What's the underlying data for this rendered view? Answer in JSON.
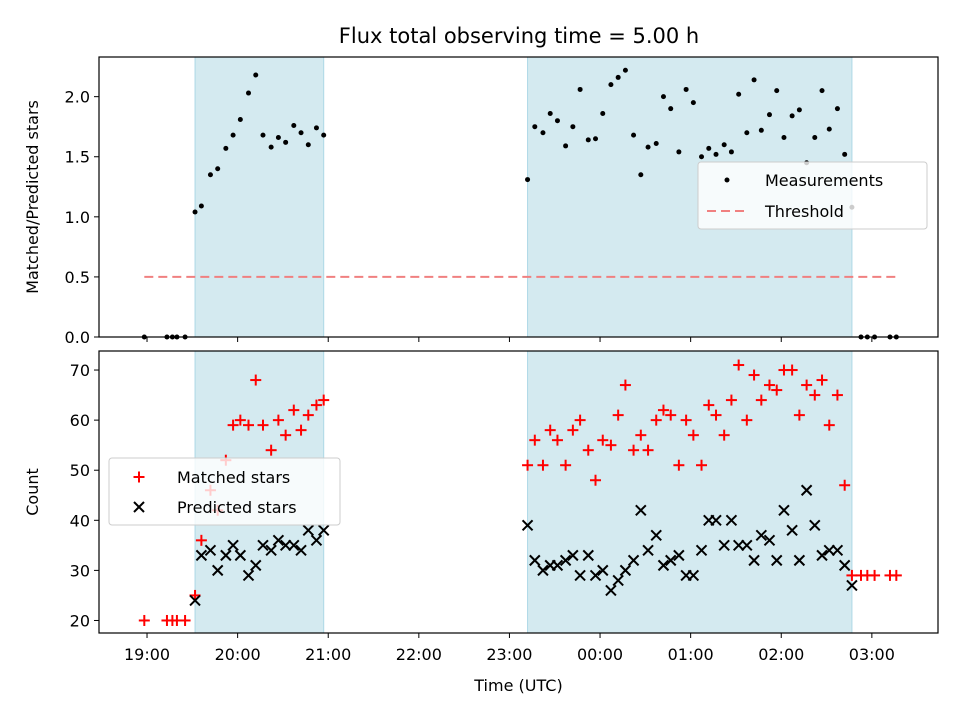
{
  "figure": {
    "title": "Flux total observing time = 5.00 h"
  },
  "chart_data": [
    {
      "type": "scatter",
      "ylabel": "Matched/Predicted stars",
      "ylim": [
        0,
        2.33
      ],
      "yticks": [
        0.0,
        0.5,
        1.0,
        1.5,
        2.0
      ],
      "ytick_labels": [
        "0.0",
        "0.5",
        "1.0",
        "1.5",
        "2.0"
      ],
      "xlim": [
        18.47,
        27.73
      ],
      "legend": {
        "placement": "center-right",
        "entries": [
          "Measurements",
          "Threshold"
        ]
      },
      "shaded_intervals": [
        [
          19.53,
          20.95
        ],
        [
          23.2,
          26.78
        ]
      ],
      "threshold": {
        "name": "Threshold",
        "value": 0.5,
        "x": [
          18.97,
          27.27
        ],
        "color": "#f08080"
      },
      "series": [
        {
          "name": "Measurements",
          "color": "#000000",
          "x": [
            18.97,
            19.22,
            19.28,
            19.33,
            19.42,
            19.53,
            19.6,
            19.7,
            19.78,
            19.87,
            19.95,
            20.03,
            20.12,
            20.2,
            20.28,
            20.37,
            20.45,
            20.53,
            20.62,
            20.7,
            20.78,
            20.87,
            20.95,
            23.2,
            23.28,
            23.37,
            23.45,
            23.53,
            23.62,
            23.7,
            23.78,
            23.87,
            23.95,
            24.03,
            24.12,
            24.2,
            24.28,
            24.37,
            24.45,
            24.53,
            24.62,
            24.7,
            24.78,
            24.87,
            24.95,
            25.03,
            25.12,
            25.2,
            25.28,
            25.37,
            25.45,
            25.53,
            25.62,
            25.7,
            25.78,
            25.87,
            25.95,
            26.03,
            26.12,
            26.2,
            26.28,
            26.37,
            26.45,
            26.53,
            26.62,
            26.7,
            26.78,
            26.88,
            26.95,
            27.03,
            27.2,
            27.27
          ],
          "y": [
            0.0,
            0.0,
            0.0,
            0.0,
            0.0,
            1.04,
            1.09,
            1.35,
            1.4,
            1.57,
            1.68,
            1.81,
            2.03,
            2.18,
            1.68,
            1.58,
            1.66,
            1.62,
            1.76,
            1.7,
            1.6,
            1.74,
            1.68,
            1.31,
            1.75,
            1.7,
            1.86,
            1.8,
            1.59,
            1.75,
            2.06,
            1.64,
            1.65,
            1.86,
            2.1,
            2.16,
            2.22,
            1.68,
            1.35,
            1.58,
            1.61,
            2.0,
            1.9,
            1.54,
            2.06,
            1.95,
            1.5,
            1.57,
            1.52,
            1.6,
            1.54,
            2.02,
            1.7,
            2.14,
            1.72,
            1.85,
            2.05,
            1.66,
            1.84,
            1.89,
            1.45,
            1.66,
            2.05,
            1.73,
            1.9,
            1.52,
            1.08,
            0.0,
            0.0,
            0.0,
            0.0,
            0.0
          ]
        }
      ]
    },
    {
      "type": "scatter",
      "ylabel": "Count",
      "xlabel": "Time (UTC)",
      "ylim": [
        17.5,
        73.8
      ],
      "yticks": [
        20,
        30,
        40,
        50,
        60,
        70
      ],
      "ytick_labels": [
        "20",
        "30",
        "40",
        "50",
        "60",
        "70"
      ],
      "xlim": [
        18.47,
        27.73
      ],
      "xticks": [
        19,
        20,
        21,
        22,
        23,
        24,
        25,
        26,
        27
      ],
      "xtick_labels": [
        "19:00",
        "20:00",
        "21:00",
        "22:00",
        "23:00",
        "00:00",
        "01:00",
        "02:00",
        "03:00"
      ],
      "legend": {
        "placement": "center-left",
        "entries": [
          "Matched stars",
          "Predicted stars"
        ]
      },
      "shaded_intervals": [
        [
          19.53,
          20.95
        ],
        [
          23.2,
          26.78
        ]
      ],
      "series": [
        {
          "name": "Matched stars",
          "marker": "plus",
          "color": "#ff0000",
          "x": [
            18.97,
            19.22,
            19.28,
            19.33,
            19.42,
            19.53,
            19.6,
            19.7,
            19.78,
            19.87,
            19.95,
            20.03,
            20.12,
            20.2,
            20.28,
            20.37,
            20.45,
            20.53,
            20.62,
            20.7,
            20.78,
            20.87,
            20.95,
            23.2,
            23.28,
            23.37,
            23.45,
            23.53,
            23.62,
            23.7,
            23.78,
            23.87,
            23.95,
            24.03,
            24.12,
            24.2,
            24.28,
            24.37,
            24.45,
            24.53,
            24.62,
            24.7,
            24.78,
            24.87,
            24.95,
            25.03,
            25.12,
            25.2,
            25.28,
            25.37,
            25.45,
            25.53,
            25.62,
            25.7,
            25.78,
            25.87,
            25.95,
            26.03,
            26.12,
            26.2,
            26.28,
            26.37,
            26.45,
            26.53,
            26.62,
            26.7,
            26.78,
            26.88,
            26.95,
            27.03,
            27.2,
            27.27
          ],
          "y": [
            20,
            20,
            20,
            20,
            20,
            25,
            36,
            46,
            42,
            52,
            59,
            60,
            59,
            68,
            59,
            54,
            60,
            57,
            62,
            58,
            61,
            63,
            64,
            51,
            56,
            51,
            58,
            56,
            51,
            58,
            60,
            54,
            48,
            56,
            55,
            61,
            67,
            54,
            57,
            54,
            60,
            62,
            61,
            51,
            60,
            57,
            51,
            63,
            61,
            57,
            64,
            71,
            60,
            69,
            64,
            67,
            66,
            70,
            70,
            61,
            67,
            65,
            68,
            59,
            65,
            47,
            29,
            29,
            29,
            29,
            29,
            29
          ]
        },
        {
          "name": "Predicted stars",
          "marker": "x",
          "color": "#000000",
          "x": [
            19.53,
            19.6,
            19.7,
            19.78,
            19.87,
            19.95,
            20.03,
            20.12,
            20.2,
            20.28,
            20.37,
            20.45,
            20.53,
            20.62,
            20.7,
            20.78,
            20.87,
            20.95,
            23.2,
            23.28,
            23.37,
            23.45,
            23.53,
            23.62,
            23.7,
            23.78,
            23.87,
            23.95,
            24.03,
            24.12,
            24.2,
            24.28,
            24.37,
            24.45,
            24.53,
            24.62,
            24.7,
            24.78,
            24.87,
            24.95,
            25.03,
            25.12,
            25.2,
            25.28,
            25.37,
            25.45,
            25.53,
            25.62,
            25.7,
            25.78,
            25.87,
            25.95,
            26.03,
            26.12,
            26.2,
            26.28,
            26.37,
            26.45,
            26.53,
            26.62,
            26.7,
            26.78
          ],
          "y": [
            24,
            33,
            34,
            30,
            33,
            35,
            33,
            29,
            31,
            35,
            34,
            36,
            35,
            35,
            34,
            38,
            36,
            38,
            39,
            32,
            30,
            31,
            31,
            32,
            33,
            29,
            33,
            29,
            30,
            26,
            28,
            30,
            32,
            42,
            34,
            37,
            31,
            32,
            33,
            29,
            29,
            34,
            40,
            40,
            35,
            40,
            35,
            35,
            32,
            37,
            36,
            32,
            42,
            38,
            32,
            46,
            39,
            33,
            34,
            34,
            31,
            27
          ]
        }
      ]
    }
  ]
}
